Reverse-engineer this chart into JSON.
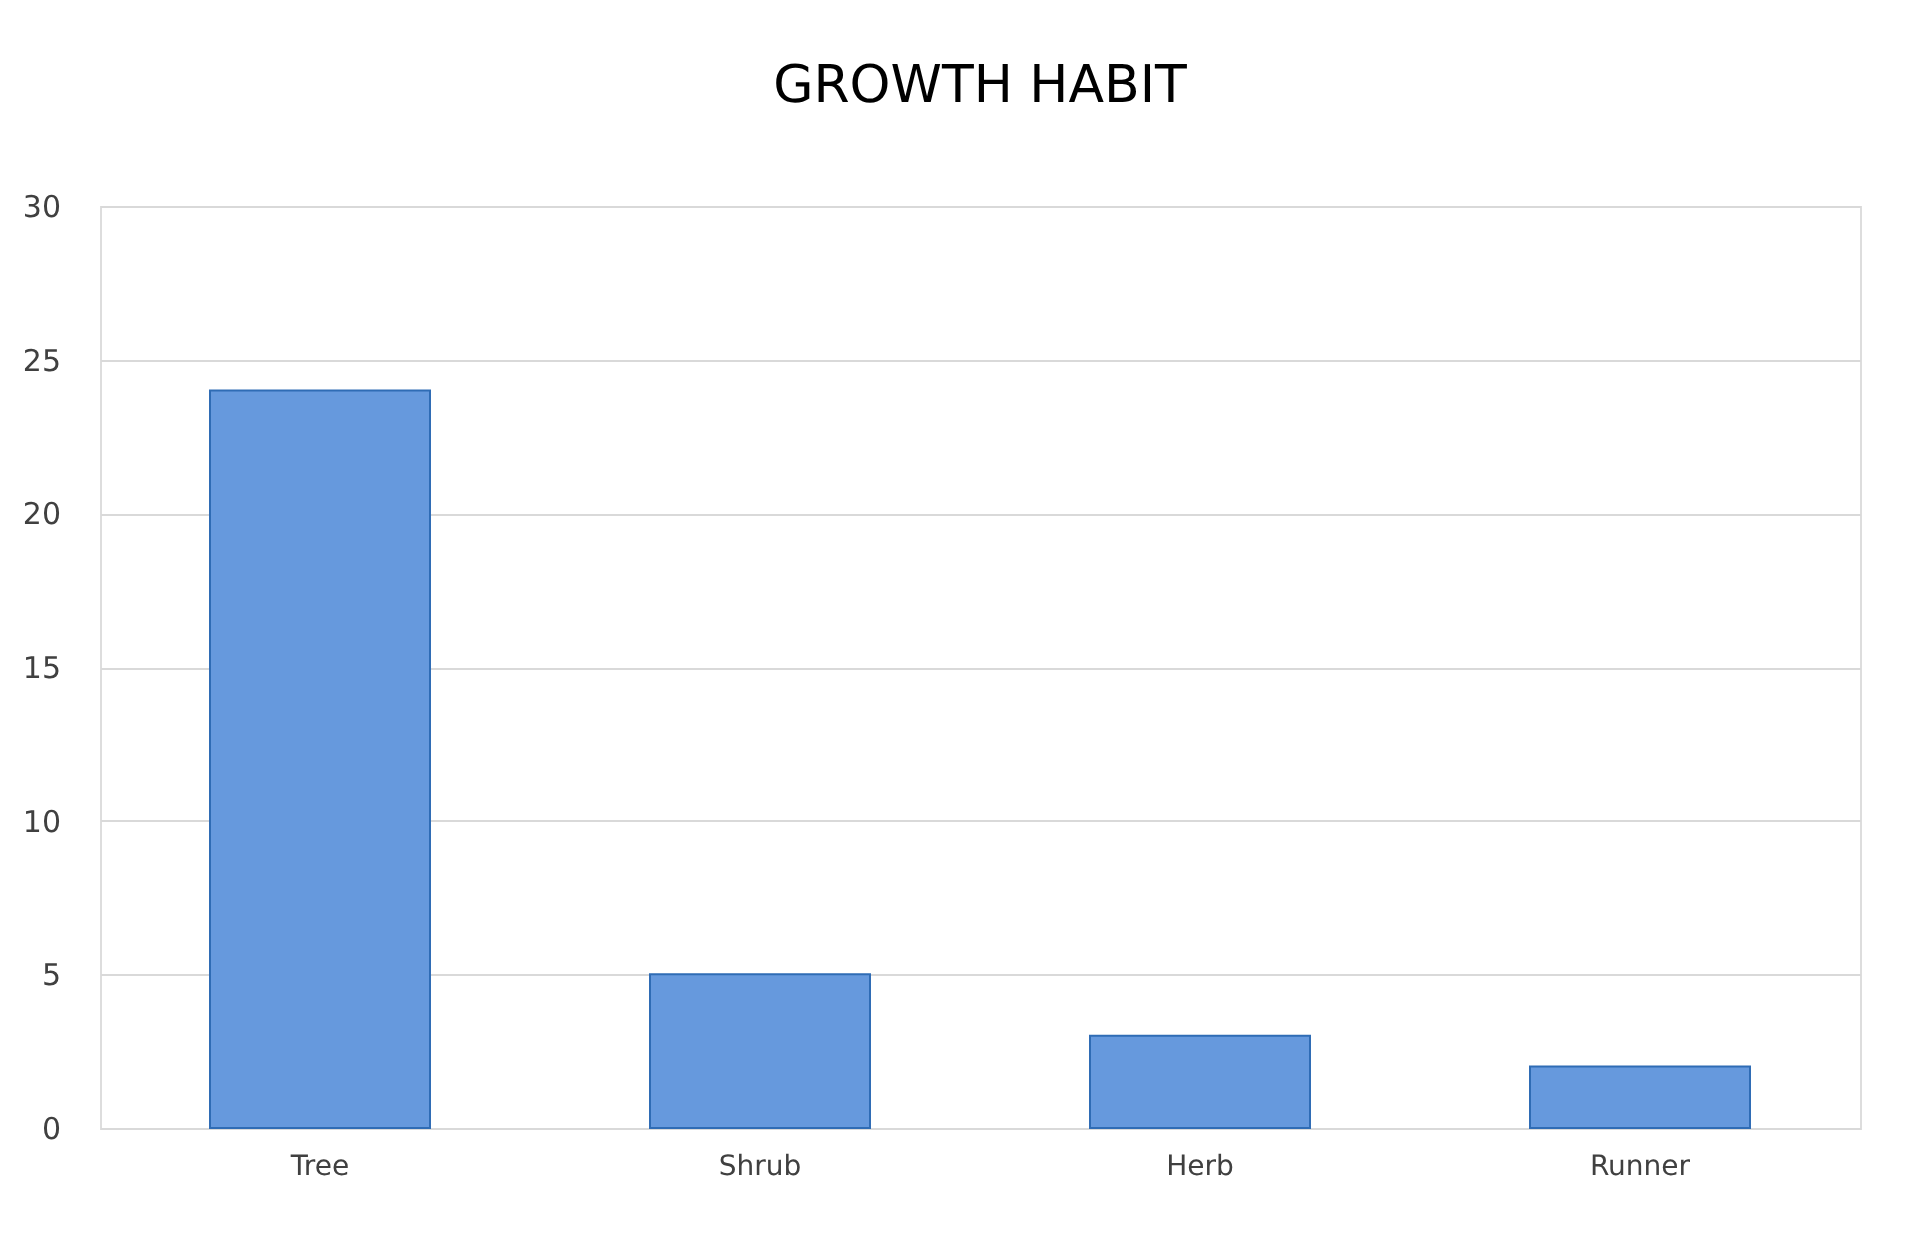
{
  "chart_data": {
    "type": "bar",
    "title": "GROWTH HABIT",
    "categories": [
      "Tree",
      "Shrub",
      "Herb",
      "Runner"
    ],
    "values": [
      24,
      5,
      3,
      2
    ],
    "color": "#6699dd",
    "ylim": [
      0,
      30
    ],
    "yticks": [
      0,
      5,
      10,
      15,
      20,
      25,
      30
    ],
    "grid": "y"
  }
}
